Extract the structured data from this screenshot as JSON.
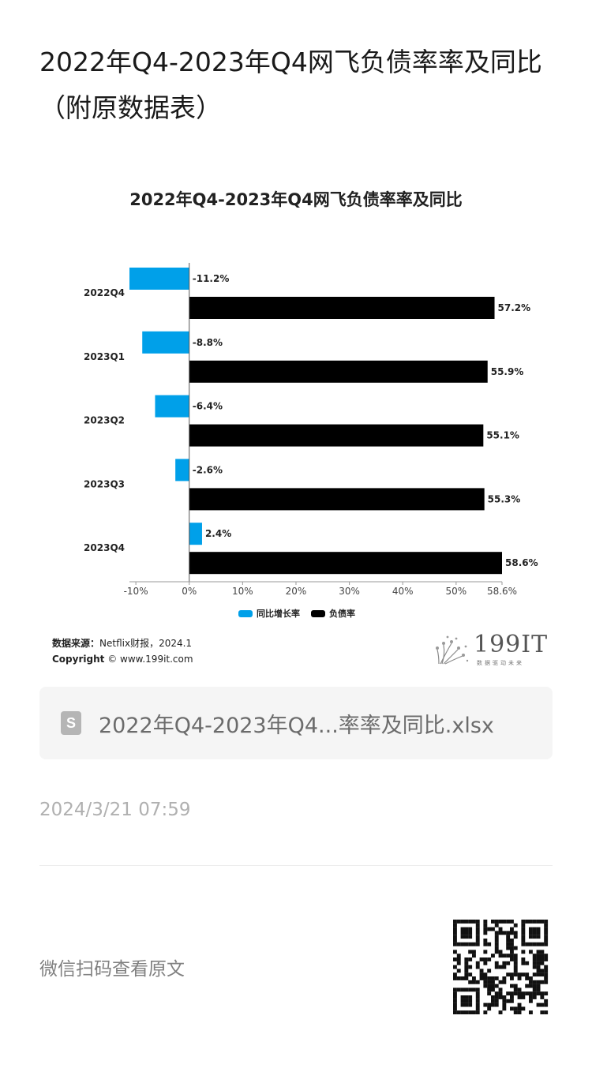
{
  "article": {
    "title": "2022年Q4-2023年Q4网飞负债率率及同比（附原数据表）"
  },
  "chart_data": {
    "type": "bar",
    "orientation": "horizontal",
    "title": "2022年Q4-2023年Q4网飞负债率率及同比",
    "categories": [
      "2022Q4",
      "2023Q1",
      "2023Q2",
      "2023Q3",
      "2023Q4"
    ],
    "series": [
      {
        "name": "同比增长率",
        "values": [
          -11.2,
          -8.8,
          -6.4,
          -2.6,
          2.4
        ],
        "labels": [
          "-11.2%",
          "-8.8%",
          "-6.4%",
          "-2.6%",
          "2.4%"
        ],
        "color": "#00a0e9"
      },
      {
        "name": "负债率",
        "values": [
          57.2,
          55.9,
          55.1,
          55.3,
          58.6
        ],
        "labels": [
          "57.2%",
          "55.9%",
          "55.1%",
          "55.3%",
          "58.6%"
        ],
        "color": "#000000"
      }
    ],
    "x_ticks": [
      -10,
      0,
      10,
      20,
      30,
      40,
      50,
      58.6
    ],
    "x_tick_labels": [
      "-10%",
      "0%",
      "10%",
      "20%",
      "30%",
      "40%",
      "50%",
      "58.6%"
    ],
    "xlim": [
      -11.2,
      58.6
    ],
    "grid": false,
    "legend_position": "bottom"
  },
  "source": {
    "label": "数据来源：",
    "value": "Netflix财报，2024.1",
    "copyright_label": "Copyright",
    "copyright_value": "© www.199it.com"
  },
  "logo": {
    "text": "199IT",
    "sub": "数据驱动未来"
  },
  "attachment": {
    "icon": "spreadsheet-file-icon",
    "icon_letter": "S",
    "name": "2022年Q4-2023年Q4...率率及同比.xlsx"
  },
  "meta": {
    "timestamp": "2024/3/21 07:59",
    "wechat_prompt": "微信扫码查看原文"
  }
}
